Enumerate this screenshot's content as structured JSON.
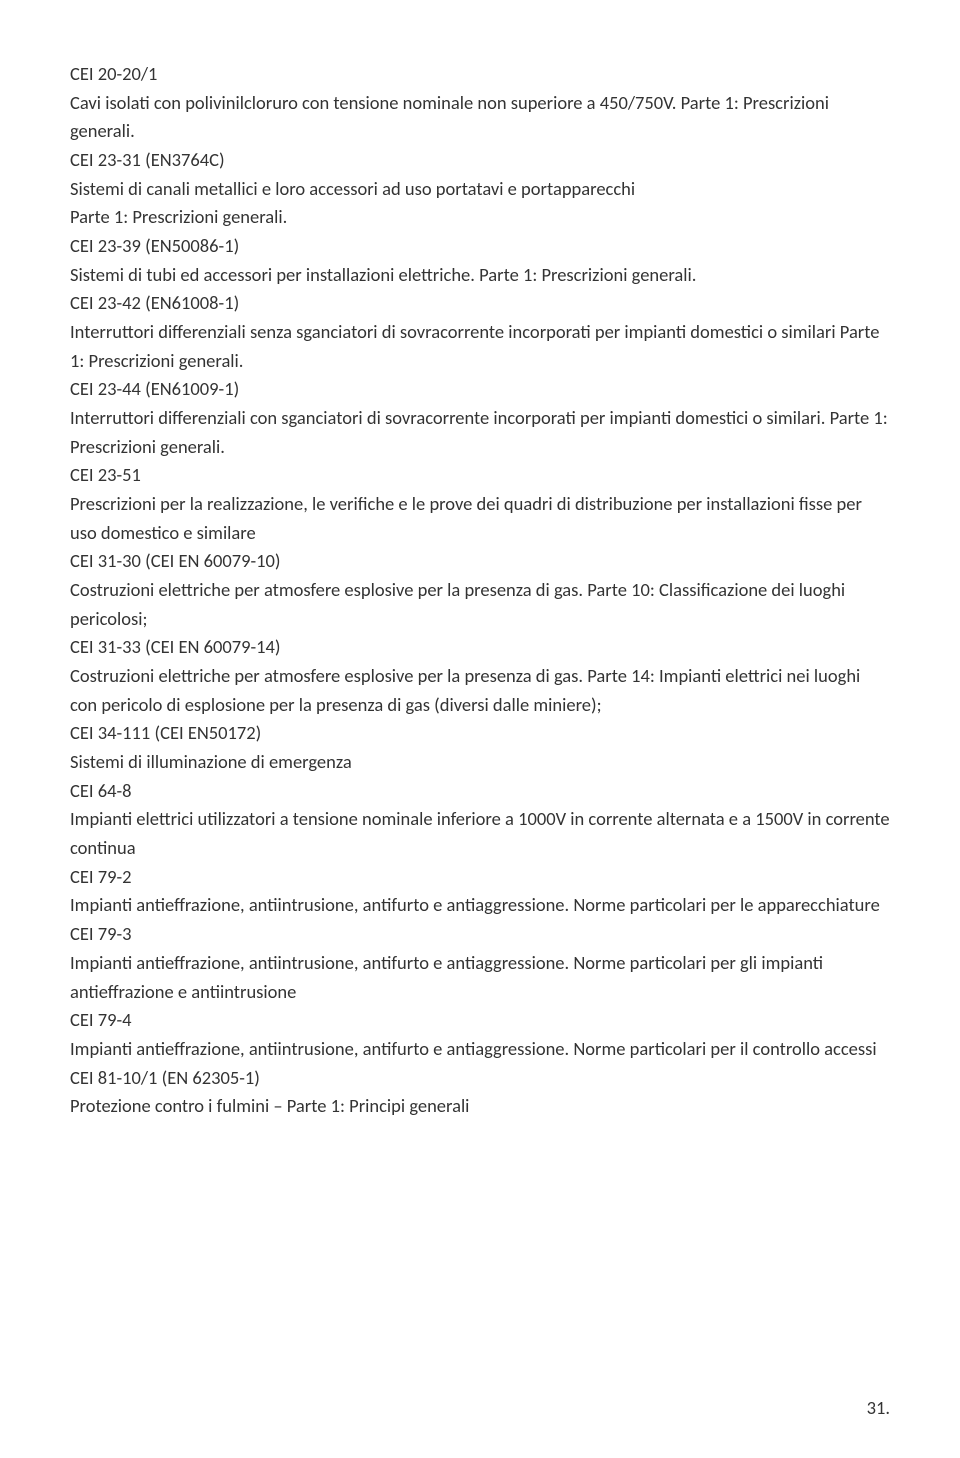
{
  "entries": [
    {
      "code": "CEI 20-20/1",
      "desc": "Cavi isolati con polivinilcloruro con tensione nominale non superiore a 450/750V. Parte 1: Prescrizioni generali."
    },
    {
      "code": "CEI 23-31 (EN3764C)",
      "desc": "Sistemi di canali metallici e loro accessori ad uso portatavi e portapparecchi"
    },
    {
      "code": "",
      "desc": "Parte 1: Prescrizioni generali."
    },
    {
      "code": "CEI 23-39 (EN50086-1)",
      "desc": "Sistemi di tubi ed accessori per installazioni elettriche. Parte 1: Prescrizioni generali."
    },
    {
      "code": "CEI 23-42 (EN61008-1)",
      "desc": "Interruttori differenziali senza sganciatori di sovracorrente incorporati per impianti domestici o similari Parte 1: Prescrizioni generali."
    },
    {
      "code": "CEI 23-44 (EN61009-1)",
      "desc": "Interruttori differenziali con sganciatori di sovracorrente incorporati per impianti domestici o similari. Parte 1: Prescrizioni generali."
    },
    {
      "code": "CEI 23-51",
      "desc": "Prescrizioni per la realizzazione, le verifiche e le prove dei quadri di distribuzione per installazioni fisse per uso domestico e similare"
    },
    {
      "code": "CEI 31-30 (CEI EN 60079-10)",
      "desc": "Costruzioni elettriche per atmosfere esplosive per la presenza di gas. Parte 10: Classificazione dei luoghi pericolosi;"
    },
    {
      "code": "CEI 31-33 (CEI EN 60079-14)",
      "desc": "Costruzioni elettriche per atmosfere esplosive per la presenza di gas. Parte 14: Impianti elettrici nei luoghi con pericolo di esplosione per la presenza di gas (diversi dalle miniere);"
    },
    {
      "code": "CEI 34-111 (CEI EN50172)",
      "desc": "Sistemi di illuminazione di emergenza"
    },
    {
      "code": "CEI 64-8",
      "desc": "Impianti elettrici utilizzatori a tensione nominale inferiore a 1000V in corrente alternata e a 1500V in corrente continua"
    },
    {
      "code": "CEI 79-2",
      "desc": "Impianti antieffrazione, antiintrusione, antifurto e antiaggressione. Norme particolari per  le apparecchiature"
    },
    {
      "code": "CEI 79-3",
      "desc": "Impianti antieffrazione, antiintrusione, antifurto e antiaggressione. Norme particolari per  gli impianti antieffrazione e antiintrusione"
    },
    {
      "code": "CEI 79-4",
      "desc": "Impianti antieffrazione, antiintrusione, antifurto e antiaggressione. Norme particolari per  il controllo accessi"
    },
    {
      "code": "CEI 81-10/1 (EN 62305-1)",
      "desc": " Protezione contro i fulmini – Parte 1: Principi generali"
    }
  ],
  "pageNumber": "31."
}
